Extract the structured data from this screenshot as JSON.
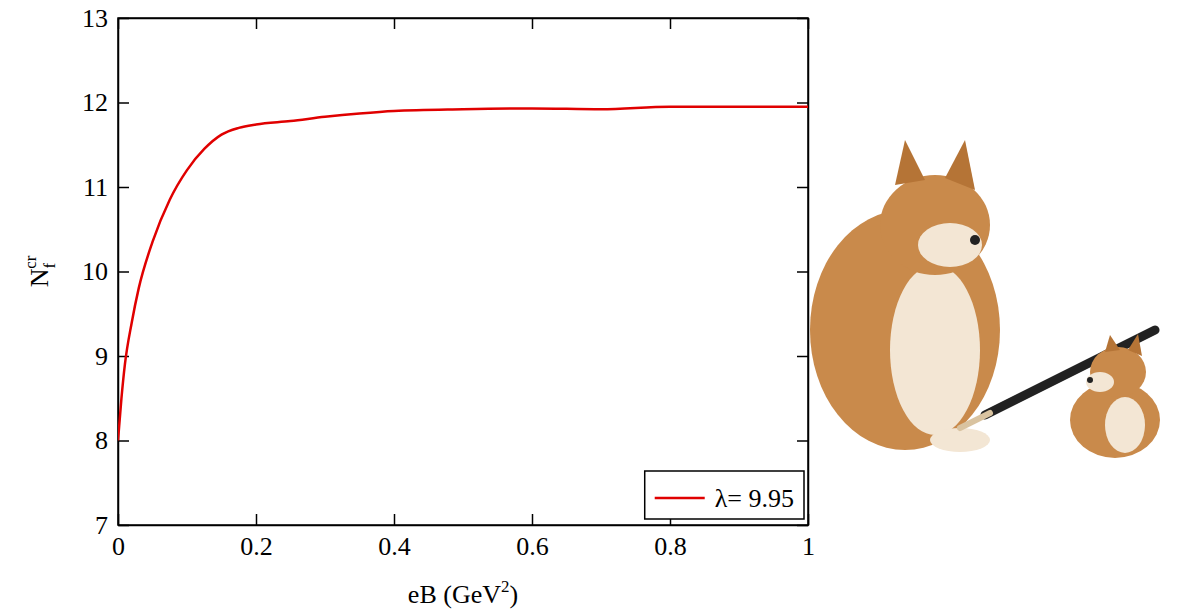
{
  "chart_data": {
    "type": "line",
    "x_label": {
      "text": "eB (GeV",
      "sup": "2",
      "after": ")"
    },
    "y_label": {
      "text": "N",
      "sub": "f",
      "sup": "cr"
    },
    "x": [
      0,
      0.005,
      0.01,
      0.02,
      0.03,
      0.05,
      0.075,
      0.1,
      0.125,
      0.15,
      0.175,
      0.2,
      0.25,
      0.3,
      0.35,
      0.4,
      0.5,
      0.6,
      0.7,
      0.8,
      0.9,
      1.0
    ],
    "series": [
      {
        "name": "λ= 9.95",
        "color": "#e00000",
        "values": [
          8.0,
          8.5,
          8.9,
          9.4,
          9.8,
          10.35,
          10.85,
          11.2,
          11.45,
          11.62,
          11.7,
          11.74,
          11.78,
          11.83,
          11.87,
          11.9,
          11.92,
          11.93,
          11.92,
          11.95,
          11.95,
          11.95
        ]
      }
    ],
    "xlim": [
      0,
      1
    ],
    "ylim": [
      7,
      13
    ],
    "xticks": [
      0,
      0.2,
      0.4,
      0.6,
      0.8,
      1
    ],
    "yticks": [
      7,
      8,
      9,
      10,
      11,
      12,
      13
    ],
    "legend": "lower right"
  }
}
